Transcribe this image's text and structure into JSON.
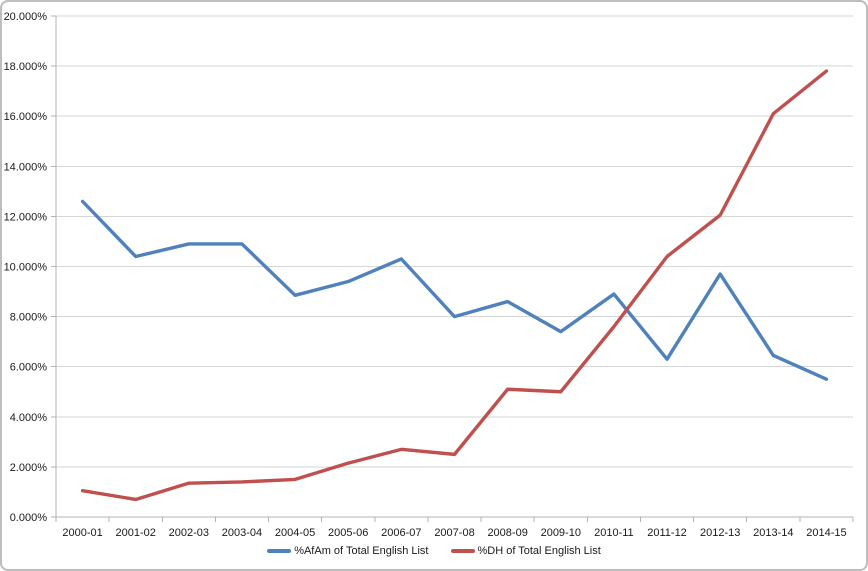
{
  "chart_data": {
    "type": "line",
    "title": "",
    "xlabel": "",
    "ylabel": "",
    "categories": [
      "2000-01",
      "2001-02",
      "2002-03",
      "2003-04",
      "2004-05",
      "2005-06",
      "2006-07",
      "2007-08",
      "2008-09",
      "2009-10",
      "2010-11",
      "2011-12",
      "2012-13",
      "2013-14",
      "2014-15"
    ],
    "series": [
      {
        "name": "%AfAm of Total English List",
        "color": "#4F81BD",
        "values": [
          12.6,
          10.4,
          10.9,
          10.9,
          8.85,
          9.4,
          10.3,
          8.0,
          8.6,
          7.4,
          8.9,
          6.3,
          9.7,
          6.45,
          5.5
        ]
      },
      {
        "name": "%DH of Total English List",
        "color": "#C0504D",
        "values": [
          1.05,
          0.7,
          1.35,
          1.4,
          1.5,
          2.15,
          2.7,
          2.5,
          5.1,
          5.0,
          7.6,
          10.4,
          12.05,
          16.1,
          17.8
        ]
      }
    ],
    "ylim": [
      0,
      20
    ],
    "ytick_step": 2,
    "grid": true,
    "legend_position": "bottom"
  },
  "y_axis": {
    "tick_labels": [
      "20.000%",
      "18.000%",
      "16.000%",
      "14.000%",
      "12.000%",
      "10.000%",
      "8.000%",
      "6.000%",
      "4.000%",
      "2.000%",
      "0.000%"
    ]
  },
  "colors": {
    "gridline": "#D6D6D6",
    "axis": "#B3B3B3",
    "text": "#1A1A1A",
    "frame_border": "#BDBDBD",
    "background": "#FFFFFF"
  }
}
